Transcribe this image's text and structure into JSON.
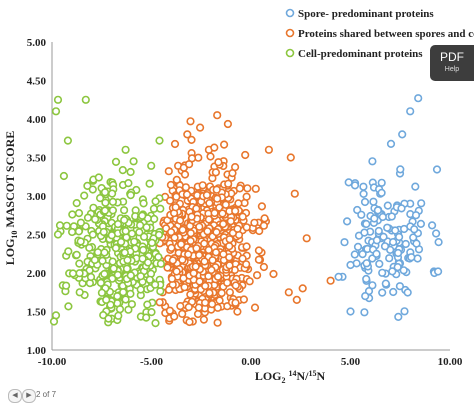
{
  "chart_data": {
    "type": "scatter",
    "title": "",
    "xlabel": "LOG2 14N/15N",
    "ylabel": "LOG10 MASCOT SCORE",
    "xlim": [
      -10,
      10
    ],
    "ylim": [
      1,
      5
    ],
    "x_ticks": [
      "-10.00",
      "-5.00",
      "0.00",
      "5.00",
      "10.00"
    ],
    "y_ticks": [
      "1.00",
      "1.50",
      "2.00",
      "2.50",
      "3.00",
      "3.50",
      "4.00",
      "4.50",
      "5.00"
    ],
    "grid": false,
    "legend_position": "top-right",
    "series": [
      {
        "name": "Spore- predominant proteins",
        "color": "#6fa8dc",
        "generated": {
          "seed": 11,
          "count": 150,
          "x_range": [
            4.5,
            9.5
          ],
          "x_mean": 6.8,
          "x_sd": 1.1,
          "y_range": [
            1.4,
            4.3
          ],
          "y_mean": 2.45,
          "y_sd": 0.45
        },
        "points": [
          {
            "x": 8.4,
            "y": 4.27
          },
          {
            "x": 8.0,
            "y": 4.1
          },
          {
            "x": 7.6,
            "y": 3.8
          },
          {
            "x": 9.4,
            "y": 2.02
          },
          {
            "x": 5.0,
            "y": 1.5
          },
          {
            "x": 5.7,
            "y": 1.49
          },
          {
            "x": 7.4,
            "y": 1.43
          },
          {
            "x": 4.4,
            "y": 1.95
          },
          {
            "x": 4.7,
            "y": 2.4
          },
          {
            "x": 6.1,
            "y": 3.45
          }
        ]
      },
      {
        "name": "Proteins shared between spores and cells",
        "color": "#e8762c",
        "generated": {
          "seed": 23,
          "count": 720,
          "x_range": [
            -4.6,
            2.6
          ],
          "x_mean": -2.5,
          "x_sd": 1.25,
          "y_range": [
            1.35,
            4.05
          ],
          "y_mean": 2.35,
          "y_sd": 0.5
        },
        "points": [
          {
            "x": -1.7,
            "y": 4.05
          },
          {
            "x": -3.2,
            "y": 3.8
          },
          {
            "x": 0.9,
            "y": 3.6
          },
          {
            "x": 2.2,
            "y": 3.03
          },
          {
            "x": 2.8,
            "y": 2.45
          },
          {
            "x": 4.0,
            "y": 1.9
          },
          {
            "x": 2.3,
            "y": 1.65
          },
          {
            "x": 2.6,
            "y": 1.8
          },
          {
            "x": 1.9,
            "y": 1.75
          },
          {
            "x": 0.2,
            "y": 1.55
          },
          {
            "x": 2.0,
            "y": 3.5
          }
        ]
      },
      {
        "name": "Cell-predominant proteins",
        "color": "#8cc63f",
        "generated": {
          "seed": 37,
          "count": 380,
          "x_range": [
            -9.6,
            -4.5
          ],
          "x_mean": -6.5,
          "x_sd": 1.3,
          "y_range": [
            1.35,
            4.0
          ],
          "y_mean": 2.35,
          "y_sd": 0.45
        },
        "points": [
          {
            "x": -9.7,
            "y": 4.25
          },
          {
            "x": -8.3,
            "y": 4.25
          },
          {
            "x": -9.8,
            "y": 4.1
          },
          {
            "x": -9.2,
            "y": 3.72
          },
          {
            "x": -9.4,
            "y": 3.26
          },
          {
            "x": -9.8,
            "y": 1.45
          },
          {
            "x": -9.9,
            "y": 1.37
          },
          {
            "x": -9.7,
            "y": 2.5
          },
          {
            "x": -5.9,
            "y": 3.45
          },
          {
            "x": -4.6,
            "y": 3.72
          },
          {
            "x": -6.3,
            "y": 3.6
          },
          {
            "x": -4.8,
            "y": 1.35
          }
        ]
      }
    ]
  },
  "viewer": {
    "pdf_label": "PDF",
    "help_label": "Help",
    "page_indicator": "2 of 7",
    "prev_icon": "◀",
    "next_icon": "▶"
  }
}
